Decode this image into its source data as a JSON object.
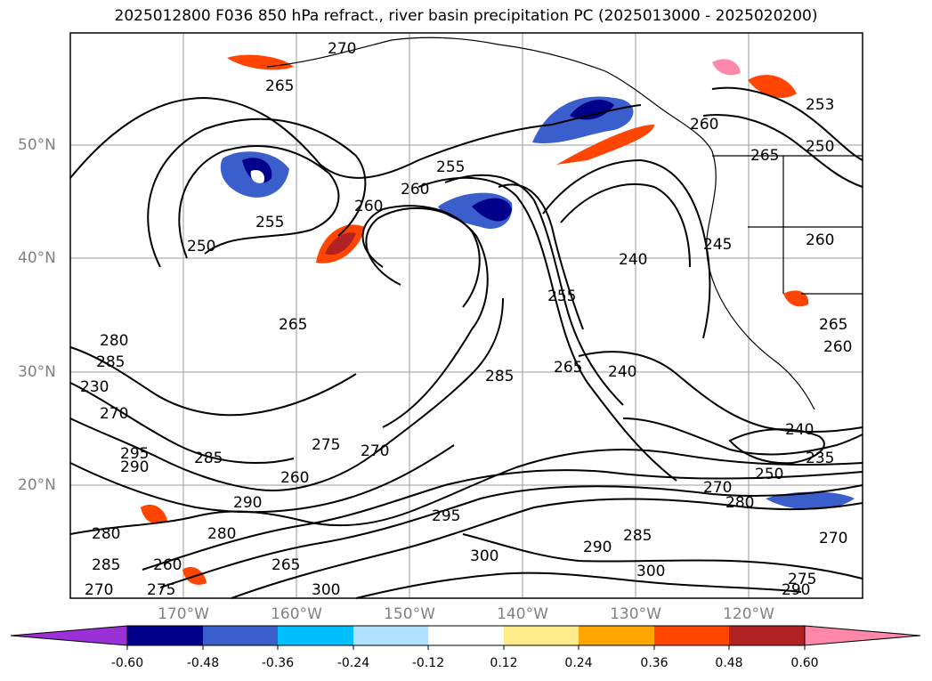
{
  "title": "2025012800 F036 850 hPa refract., river basin precipitation PC (2025013000 - 2025020200)",
  "lat_labels": [
    "50°N",
    "40°N",
    "30°N",
    "20°N"
  ],
  "lon_labels": [
    "170°W",
    "160°W",
    "150°W",
    "140°W",
    "130°W",
    "120°W"
  ],
  "contour_labels": [
    "270",
    "265",
    "260",
    "255",
    "250",
    "255",
    "260",
    "265",
    "240",
    "255",
    "265",
    "280",
    "285",
    "270",
    "285",
    "240",
    "295",
    "290",
    "275",
    "270",
    "260",
    "285",
    "290",
    "280",
    "235",
    "240",
    "250",
    "270",
    "280",
    "280",
    "285",
    "260",
    "275",
    "270",
    "265",
    "300",
    "295",
    "300",
    "290",
    "285",
    "300",
    "275",
    "290",
    "270",
    "260",
    "253",
    "250",
    "265",
    "260",
    "245",
    "265",
    "260",
    "230"
  ],
  "colorbar": {
    "tick_labels": [
      "-0.60",
      "-0.48",
      "-0.36",
      "-0.24",
      "-0.12",
      "0.12",
      "0.24",
      "0.36",
      "0.48",
      "0.60"
    ],
    "colors": [
      "#9b30d9",
      "#00008b",
      "#3a5fcd",
      "#00bfff",
      "#b0e2ff",
      "#ffffff",
      "#ffec8b",
      "#ffa500",
      "#ff4500",
      "#b22222",
      "#ff88aa"
    ]
  },
  "map": {
    "region": "North Pacific / western North America",
    "contour_field": "850 hPa refractivity",
    "shading_field": "river basin precipitation PC"
  }
}
